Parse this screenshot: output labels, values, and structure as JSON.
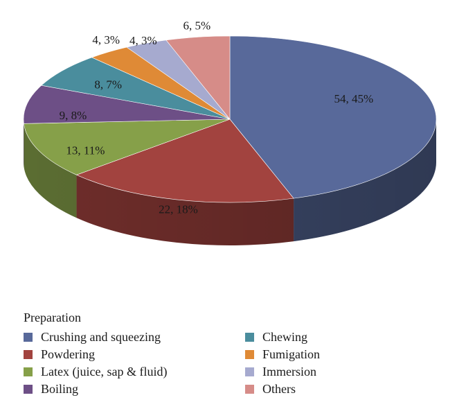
{
  "chart_data": {
    "type": "pie",
    "legend_title": "Preparation",
    "legend_position": "bottom",
    "three_d": true,
    "slices": [
      {
        "name": "Crushing and squeezing",
        "value": 54,
        "percent": 45,
        "label": "54, 45%",
        "color": "#58699A"
      },
      {
        "name": "Powdering",
        "value": 22,
        "percent": 18,
        "label": "22, 18%",
        "color": "#A2433F"
      },
      {
        "name": "Latex (juice, sap & fluid)",
        "value": 13,
        "percent": 11,
        "label": "13, 11%",
        "color": "#86A049"
      },
      {
        "name": "Boiling",
        "value": 9,
        "percent": 8,
        "label": "9, 8%",
        "color": "#6D4F86"
      },
      {
        "name": "Chewing",
        "value": 8,
        "percent": 7,
        "label": "8, 7%",
        "color": "#4A8D9D"
      },
      {
        "name": "Fumigation",
        "value": 4,
        "percent": 3,
        "label": "4, 3%",
        "color": "#DF8A36"
      },
      {
        "name": "Immersion",
        "value": 4,
        "percent": 3,
        "label": "4, 3%",
        "color": "#A6AACF"
      },
      {
        "name": "Others",
        "value": 6,
        "percent": 5,
        "label": "6, 5%",
        "color": "#D68C88"
      }
    ]
  }
}
